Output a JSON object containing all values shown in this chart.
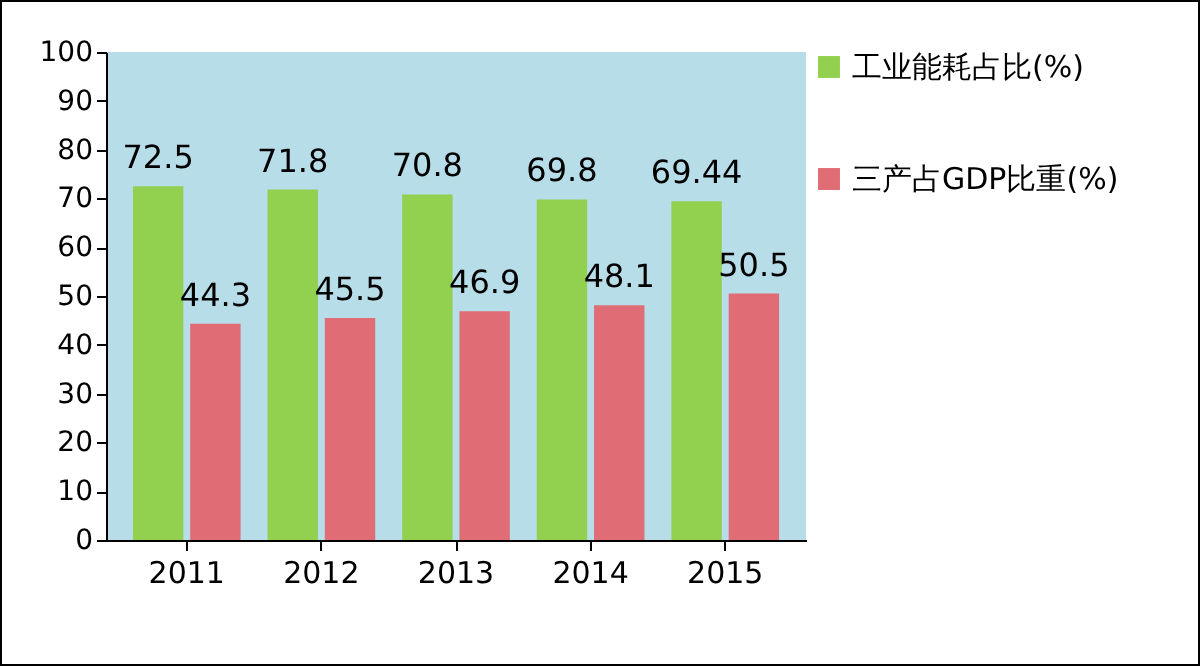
{
  "chart_data": {
    "type": "bar",
    "categories": [
      "2011",
      "2012",
      "2013",
      "2014",
      "2015"
    ],
    "series": [
      {
        "name": "工业能耗占比(%)",
        "color": "#92d050",
        "values": [
          72.5,
          71.8,
          70.8,
          69.8,
          69.44
        ]
      },
      {
        "name": "三产占GDP比重(%)",
        "color": "#e06c75",
        "values": [
          44.3,
          45.5,
          46.9,
          48.1,
          50.5
        ]
      }
    ],
    "ylim": [
      0,
      100
    ],
    "yticks": [
      0,
      10,
      20,
      30,
      40,
      50,
      60,
      70,
      80,
      90,
      100
    ],
    "grid": false,
    "legend": "top right",
    "data_labels": true
  }
}
